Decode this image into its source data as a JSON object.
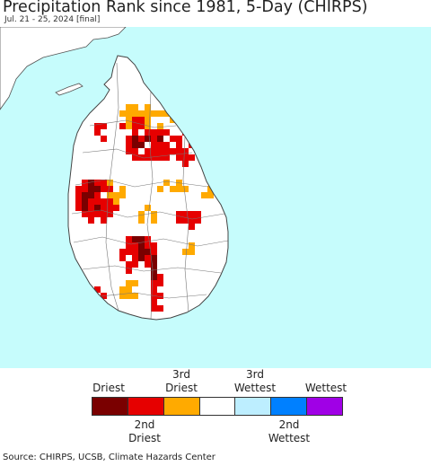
{
  "title": "Precipitation Rank since 1981, 5-Day (CHIRPS)",
  "subtitle": "Jul. 21 - 25, 2024 [final]",
  "colors": {
    "ocean": "#c6fcfc",
    "land": "#ffffff",
    "border": "#555555",
    "driest": "#7a0000",
    "second_driest": "#e60000",
    "third_driest": "#ffaa00",
    "normal": "#ffffff",
    "third_wettest": "#bdeeff",
    "second_wettest": "#0080ff",
    "wettest": "#a000e6"
  },
  "legend": {
    "top_labels": [
      "Driest",
      "3rd\nDriest",
      "3rd\nWettest",
      "Wettest"
    ],
    "bottom_labels": [
      "2nd\nDriest",
      "2nd\nWettest"
    ],
    "swatches": [
      "driest",
      "second_driest",
      "third_driest",
      "normal",
      "third_wettest",
      "second_wettest",
      "wettest"
    ]
  },
  "source": "Source: CHIRPS, UCSB, Climate Hazards Center"
}
